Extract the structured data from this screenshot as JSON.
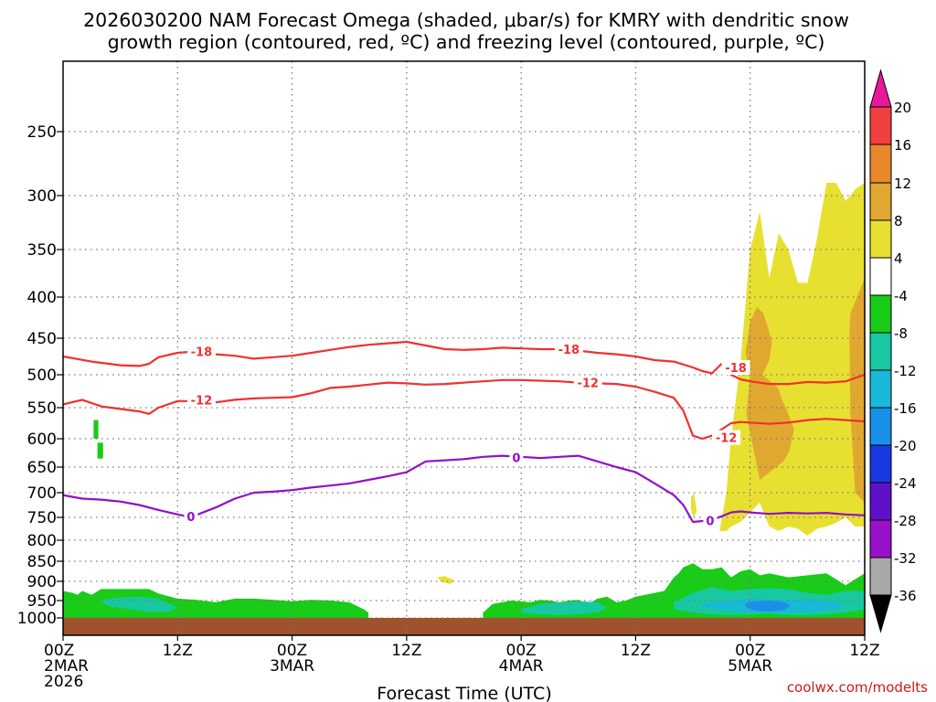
{
  "chart_data": {
    "type": "heatmap",
    "title_line1": "2026030200 NAM Forecast Omega (shaded, μbar/s) for KMRY with dendritic snow",
    "title_line2": "growth region (contoured, red, ºC) and freezing level (contoured, purple, ºC)",
    "xlabel": "Forecast Time (UTC)",
    "ylabel": "",
    "watermark": "coolwx.com/modelts",
    "x_range_hours": [
      0,
      84
    ],
    "y_range_hpa": [
      200,
      1025
    ],
    "y_ticks": [
      {
        "value": 250,
        "label": "250"
      },
      {
        "value": 300,
        "label": "300"
      },
      {
        "value": 350,
        "label": "350"
      },
      {
        "value": 400,
        "label": "400"
      },
      {
        "value": 450,
        "label": "450"
      },
      {
        "value": 500,
        "label": "500"
      },
      {
        "value": 550,
        "label": "550"
      },
      {
        "value": 600,
        "label": "600"
      },
      {
        "value": 650,
        "label": "650"
      },
      {
        "value": 700,
        "label": "700"
      },
      {
        "value": 750,
        "label": "750"
      },
      {
        "value": 800,
        "label": "800"
      },
      {
        "value": 850,
        "label": "850"
      },
      {
        "value": 900,
        "label": "900"
      },
      {
        "value": 950,
        "label": "950"
      },
      {
        "value": 1000,
        "label": "1000"
      }
    ],
    "x_ticks": [
      {
        "hour": 0,
        "lines": [
          "00Z",
          "2MAR",
          "2026"
        ]
      },
      {
        "hour": 12,
        "lines": [
          "12Z"
        ]
      },
      {
        "hour": 24,
        "lines": [
          "00Z",
          "3MAR"
        ]
      },
      {
        "hour": 36,
        "lines": [
          "12Z"
        ]
      },
      {
        "hour": 48,
        "lines": [
          "00Z",
          "4MAR"
        ]
      },
      {
        "hour": 60,
        "lines": [
          "12Z"
        ]
      },
      {
        "hour": 72,
        "lines": [
          "00Z",
          "5MAR"
        ]
      },
      {
        "hour": 84,
        "lines": [
          "12Z"
        ]
      }
    ],
    "colorbar": {
      "levels": [
        20,
        16,
        12,
        8,
        4,
        -4,
        -8,
        -12,
        -16,
        -20,
        -24,
        -28,
        -32,
        -36
      ],
      "colors": [
        "#e8189a",
        "#f04040",
        "#e8882a",
        "#e0a830",
        "#e8e030",
        "#ffffff",
        "#18cc18",
        "#18c8a0",
        "#18b8d8",
        "#1890e8",
        "#1838e0",
        "#6010c8",
        "#9810c8",
        "#a8a8a8",
        "#000000"
      ]
    },
    "terrain_color": "#a0522d",
    "surface_pressure_hpa": 1000,
    "contours": [
      {
        "name": "dendritic-top",
        "level": -18,
        "label": "-18",
        "color": "#f03030",
        "x": [
          0,
          3,
          6,
          8,
          9,
          10,
          12,
          14,
          16,
          18,
          20,
          22,
          24,
          26,
          28,
          30,
          32,
          34,
          36,
          38,
          40,
          42,
          44,
          46,
          48,
          50,
          52,
          54,
          56,
          58,
          60,
          62,
          64,
          66,
          67,
          68,
          69,
          70,
          71,
          72,
          74,
          76,
          78,
          80,
          82,
          84
        ],
        "y": [
          475,
          482,
          487,
          488,
          485,
          476,
          470,
          468,
          472,
          474,
          478,
          476,
          474,
          470,
          466,
          462,
          459,
          457,
          455,
          460,
          465,
          466,
          465,
          463,
          464,
          465,
          465,
          467,
          470,
          472,
          475,
          480,
          482,
          490,
          495,
          498,
          485,
          500,
          507,
          510,
          514,
          514,
          511,
          512,
          510,
          500
        ]
      },
      {
        "name": "dendritic-bottom",
        "level": -12,
        "label": "-12",
        "color": "#f03030",
        "x": [
          0,
          2,
          4,
          6,
          8,
          9,
          10,
          12,
          14,
          16,
          18,
          20,
          22,
          24,
          26,
          28,
          30,
          32,
          34,
          36,
          38,
          40,
          42,
          44,
          46,
          48,
          50,
          52,
          54,
          56,
          58,
          60,
          62,
          64,
          65,
          66,
          67,
          68,
          69,
          70,
          71,
          72,
          74,
          76,
          78,
          80,
          82,
          84
        ],
        "y": [
          545,
          538,
          548,
          552,
          556,
          560,
          550,
          540,
          540,
          542,
          538,
          536,
          535,
          534,
          528,
          520,
          518,
          515,
          512,
          513,
          515,
          514,
          512,
          510,
          508,
          508,
          509,
          510,
          512,
          513,
          514,
          518,
          526,
          535,
          555,
          595,
          600,
          595,
          585,
          575,
          573,
          574,
          576,
          574,
          570,
          568,
          570,
          572
        ]
      },
      {
        "name": "freezing-level",
        "level": 0,
        "label": "0",
        "color": "#9010c8",
        "x": [
          0,
          2,
          4,
          6,
          8,
          10,
          12,
          13,
          14,
          16,
          18,
          20,
          22,
          24,
          26,
          28,
          30,
          32,
          34,
          36,
          38,
          40,
          42,
          44,
          46,
          48,
          50,
          52,
          54,
          56,
          58,
          60,
          62,
          64,
          65,
          66,
          67,
          68,
          69,
          70,
          71,
          72,
          74,
          76,
          78,
          80,
          82,
          84
        ],
        "y": [
          705,
          712,
          714,
          718,
          725,
          735,
          744,
          748,
          745,
          730,
          712,
          700,
          698,
          695,
          690,
          686,
          682,
          675,
          668,
          660,
          640,
          638,
          636,
          632,
          630,
          632,
          634,
          632,
          630,
          640,
          650,
          660,
          682,
          705,
          725,
          760,
          758,
          755,
          748,
          740,
          738,
          740,
          743,
          741,
          742,
          741,
          744,
          746
        ]
      }
    ],
    "contour_labels": [
      {
        "text": "-18",
        "hour": 14.5,
        "hpa": 468,
        "color": "#f03030"
      },
      {
        "text": "-18",
        "hour": 53,
        "hpa": 465,
        "color": "#f03030"
      },
      {
        "text": "-18",
        "hour": 70.5,
        "hpa": 490,
        "color": "#f03030"
      },
      {
        "text": "-12",
        "hour": 14.5,
        "hpa": 538,
        "color": "#f03030"
      },
      {
        "text": "-12",
        "hour": 55,
        "hpa": 512,
        "color": "#f03030"
      },
      {
        "text": "-12",
        "hour": 69.5,
        "hpa": 598,
        "color": "#f03030"
      },
      {
        "text": "0",
        "hour": 13.4,
        "hpa": 748,
        "color": "#9010c8"
      },
      {
        "text": "0",
        "hour": 47.5,
        "hpa": 633,
        "color": "#9010c8"
      },
      {
        "text": "0",
        "hour": 67.8,
        "hpa": 757,
        "color": "#9010c8"
      }
    ],
    "shaded_regions": [
      {
        "name": "ascent-plume-4-8",
        "level_min": 4,
        "level_max": 8,
        "color": "#e8e030",
        "x": [
          68.8,
          69.5,
          70,
          71,
          72,
          73,
          74,
          75,
          76,
          77,
          78,
          79,
          80,
          81,
          82,
          82.5,
          83,
          84,
          84,
          83,
          82,
          81,
          80,
          79,
          78,
          77,
          76,
          75,
          74,
          73,
          72,
          71,
          70,
          69.5,
          68.8
        ],
        "y": [
          780,
          700,
          600,
          480,
          350,
          315,
          380,
          335,
          350,
          385,
          385,
          340,
          290,
          290,
          305,
          300,
          295,
          290,
          770,
          770,
          750,
          762,
          770,
          775,
          790,
          775,
          770,
          780,
          770,
          720,
          740,
          760,
          770,
          780,
          780
        ]
      },
      {
        "name": "ascent-core-8-12",
        "level_min": 8,
        "level_max": 12,
        "color": "#e0a830",
        "x": [
          72,
          72.7,
          73.4,
          74.3,
          74,
          73.3,
          74.9,
          75.4,
          76,
          76.6,
          76.1,
          75.5,
          73,
          71.6,
          72,
          71.5,
          72
        ],
        "y": [
          430,
          412,
          420,
          455,
          480,
          500,
          520,
          540,
          560,
          585,
          622,
          640,
          675,
          560,
          500,
          470,
          430
        ]
      },
      {
        "name": "ascent-core-east-8-12",
        "level_min": 8,
        "level_max": 12,
        "color": "#e0a830",
        "x": [
          82.5,
          84,
          84,
          83,
          82.5,
          82.4
        ],
        "y": [
          420,
          380,
          720,
          700,
          560,
          440
        ]
      },
      {
        "name": "ascent-sliver",
        "level_min": 4,
        "level_max": 8,
        "color": "#e8e030",
        "x": [
          65.8,
          66.1,
          66.4,
          66.1,
          65.8
        ],
        "y": [
          710,
          700,
          735,
          752,
          735
        ]
      },
      {
        "name": "ascent-speck",
        "level_min": 4,
        "level_max": 8,
        "color": "#e8e030",
        "x": [
          39.2,
          40,
          41,
          40.6,
          39.6
        ],
        "y": [
          890,
          887,
          897,
          907,
          901
        ]
      },
      {
        "name": "descent-speck-1",
        "level_min": -8,
        "level_max": -4,
        "color": "#18cc18",
        "x": [
          3.2,
          3.7,
          3.7,
          3.2
        ],
        "y": [
          570,
          570,
          600,
          600
        ]
      },
      {
        "name": "descent-speck-2",
        "level_min": -8,
        "level_max": -4,
        "color": "#18cc18",
        "x": [
          3.6,
          4.2,
          4.2,
          3.6
        ],
        "y": [
          607,
          607,
          635,
          635
        ]
      },
      {
        "name": "descent-low-west",
        "level_min": -8,
        "level_max": -4,
        "color": "#18cc18",
        "x": [
          0,
          1,
          1.5,
          2,
          3,
          4,
          5,
          6,
          8,
          9,
          10,
          12,
          14,
          16,
          18,
          20,
          22,
          24,
          26,
          28,
          30,
          31.5,
          32,
          32,
          30,
          28,
          26,
          24,
          22,
          20,
          18,
          16,
          14,
          12,
          10,
          8,
          6,
          4,
          2,
          0
        ],
        "y": [
          925,
          930,
          935,
          925,
          935,
          920,
          920,
          920,
          920,
          920,
          932,
          945,
          948,
          955,
          945,
          945,
          948,
          952,
          948,
          950,
          955,
          975,
          985,
          1000,
          1000,
          1000,
          1000,
          1000,
          1000,
          1000,
          1000,
          1000,
          1000,
          1000,
          1000,
          1000,
          1000,
          1000,
          1000,
          1000
        ]
      },
      {
        "name": "descent-low-east",
        "level_min": -8,
        "level_max": -4,
        "color": "#18cc18",
        "x": [
          44,
          45,
          47,
          49,
          50,
          51,
          52,
          53,
          54,
          55,
          56,
          57,
          58,
          59,
          60,
          61,
          62,
          63,
          64,
          64.5,
          65,
          66,
          67,
          68,
          69,
          70,
          71,
          72,
          73,
          74,
          76,
          78,
          80,
          82,
          84,
          84,
          82,
          80,
          78,
          76,
          74,
          72,
          70,
          68,
          66,
          64,
          62,
          60,
          58,
          56,
          54,
          52,
          50,
          48,
          46,
          44
        ],
        "y": [
          985,
          960,
          950,
          955,
          948,
          950,
          955,
          950,
          948,
          960,
          945,
          940,
          955,
          950,
          940,
          935,
          930,
          925,
          890,
          880,
          865,
          855,
          870,
          870,
          865,
          890,
          875,
          870,
          885,
          880,
          890,
          885,
          880,
          910,
          880,
          1000,
          1000,
          1000,
          1000,
          1000,
          1000,
          1000,
          1000,
          1000,
          1000,
          1000,
          1000,
          1000,
          1000,
          1000,
          1000,
          1000,
          1000,
          1000,
          1000,
          1000
        ]
      },
      {
        "name": "descent-mid-west",
        "level_min": -12,
        "level_max": -8,
        "color": "#18c8a0",
        "x": [
          4,
          6,
          8,
          10,
          12,
          11,
          9,
          7,
          5,
          4
        ],
        "y": [
          948,
          942,
          940,
          945,
          970,
          983,
          983,
          975,
          968,
          955
        ]
      },
      {
        "name": "descent-mid-center",
        "level_min": -12,
        "level_max": -8,
        "color": "#18c8a0",
        "x": [
          48,
          50,
          52,
          54,
          56,
          57,
          56,
          54,
          52,
          50,
          48
        ],
        "y": [
          975,
          960,
          955,
          952,
          955,
          970,
          985,
          990,
          992,
          990,
          985
        ]
      },
      {
        "name": "descent-mid-east",
        "level_min": -12,
        "level_max": -8,
        "color": "#18c8a0",
        "x": [
          64,
          66,
          68,
          70,
          72,
          74,
          76,
          78,
          80,
          82,
          84,
          84,
          82,
          80,
          78,
          76,
          74,
          72,
          70,
          68,
          66,
          64
        ],
        "y": [
          955,
          930,
          915,
          925,
          920,
          918,
          920,
          930,
          935,
          925,
          925,
          975,
          985,
          990,
          992,
          992,
          988,
          990,
          992,
          990,
          985,
          975
        ]
      },
      {
        "name": "descent-strong-east",
        "level_min": -16,
        "level_max": -12,
        "color": "#18b8d8",
        "x": [
          67,
          70,
          72,
          75,
          78,
          80,
          82,
          81,
          78,
          75,
          72,
          69,
          67
        ],
        "y": [
          960,
          950,
          945,
          948,
          948,
          952,
          960,
          975,
          983,
          985,
          983,
          975,
          970
        ]
      },
      {
        "name": "descent-strongest-east",
        "level_min": -20,
        "level_max": -16,
        "color": "#1890e8",
        "x": [
          71.5,
          72.5,
          74,
          75.5,
          76.2,
          75.5,
          74,
          72.5,
          71.5
        ],
        "y": [
          958,
          952,
          950,
          954,
          965,
          978,
          982,
          980,
          968
        ]
      }
    ]
  }
}
